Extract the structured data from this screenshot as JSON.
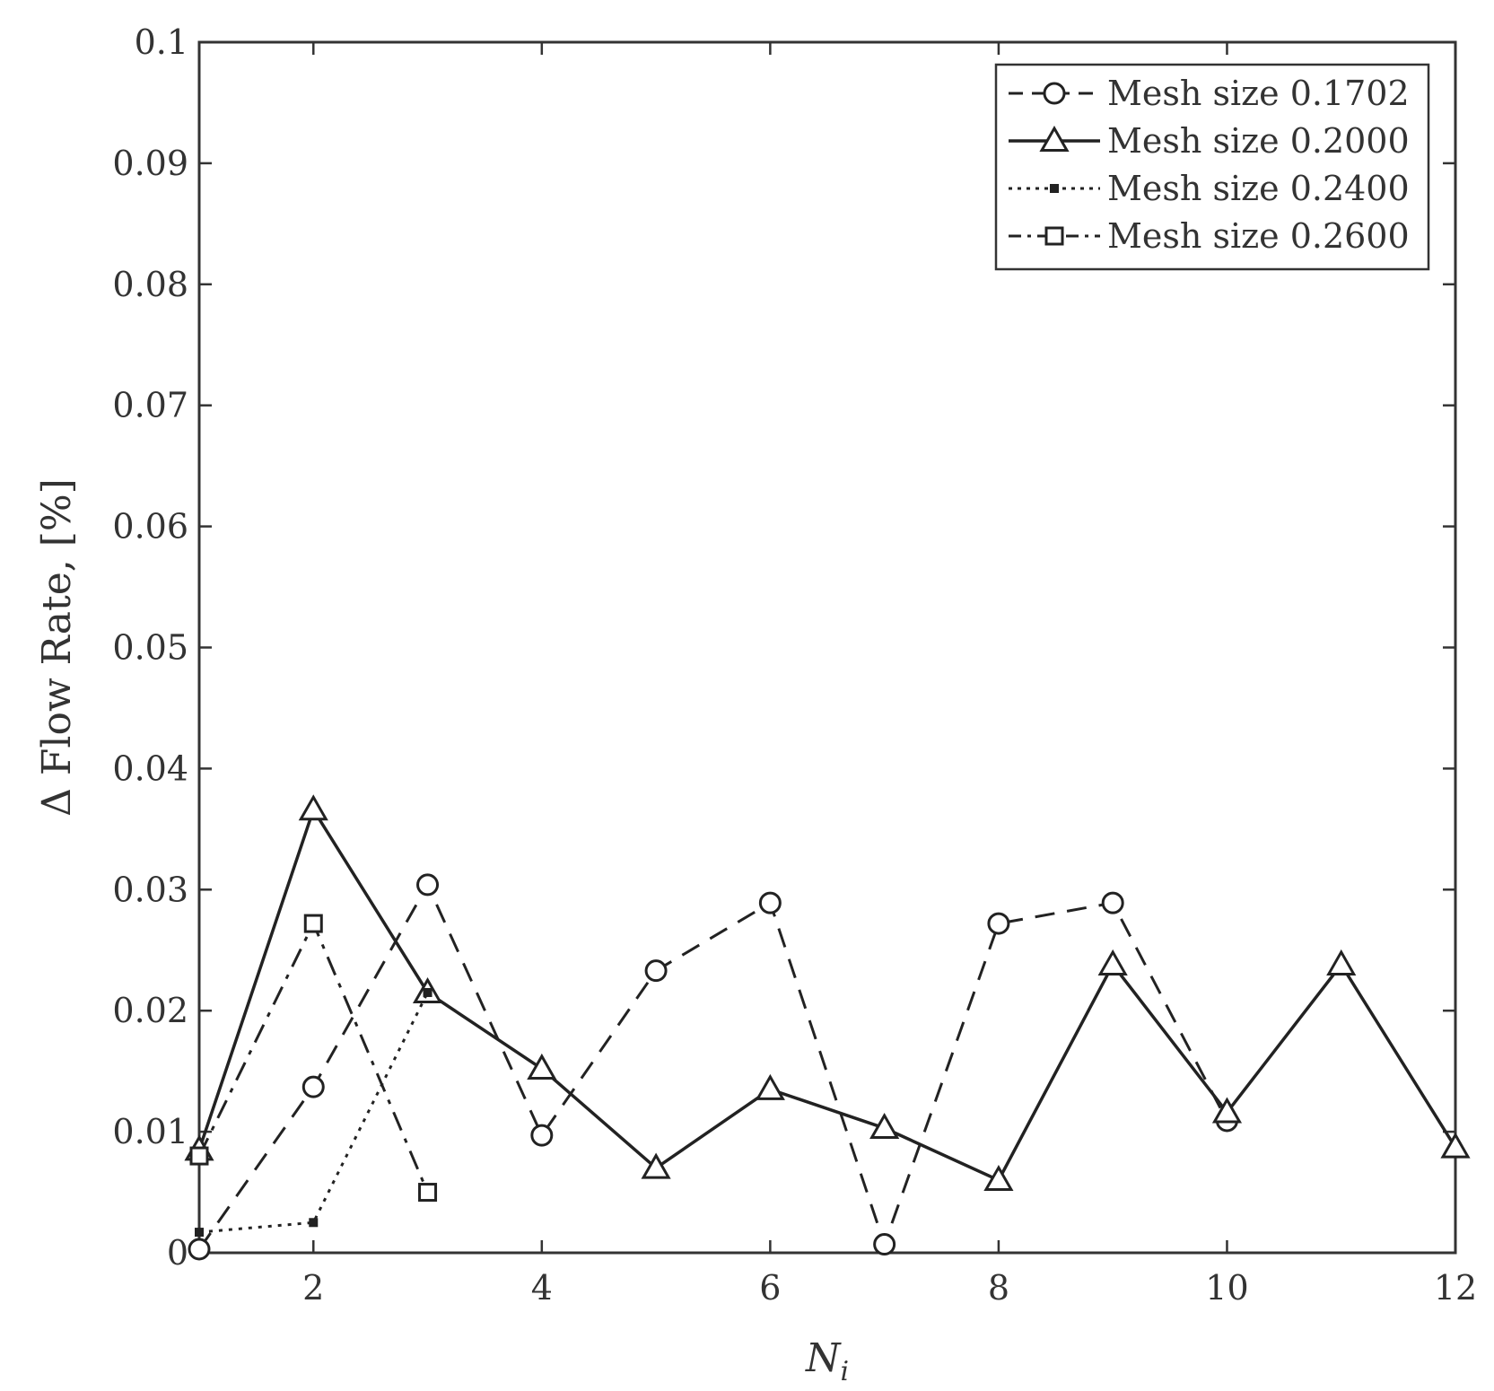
{
  "chart_data": {
    "type": "line",
    "xlabel": "N",
    "xlabel_sub": "i",
    "ylabel": "Δ Flow Rate, [%]",
    "xlim": [
      1,
      12
    ],
    "ylim": [
      0,
      0.1
    ],
    "xticks": [
      2,
      4,
      6,
      8,
      10,
      12
    ],
    "xtick_labels": [
      "2",
      "4",
      "6",
      "8",
      "10",
      "12"
    ],
    "yticks": [
      0,
      0.01,
      0.02,
      0.03,
      0.04,
      0.05,
      0.06,
      0.07,
      0.08,
      0.09,
      0.1
    ],
    "ytick_labels": [
      "0",
      "0.01",
      "0.02",
      "0.03",
      "0.04",
      "0.05",
      "0.06",
      "0.07",
      "0.08",
      "0.09",
      "0.1"
    ],
    "grid": false,
    "legend_position": "top-right",
    "series": [
      {
        "name": "Mesh size 0.1702",
        "line_style": "dashed",
        "marker": "circle",
        "color": "#222222",
        "x": [
          1,
          2,
          3,
          4,
          5,
          6,
          7,
          8,
          9,
          10
        ],
        "y": [
          0.0003,
          0.0137,
          0.0304,
          0.0097,
          0.0233,
          0.0289,
          0.0007,
          0.0272,
          0.0289,
          0.0109
        ]
      },
      {
        "name": "Mesh size 0.2000",
        "line_style": "solid",
        "marker": "triangle",
        "color": "#222222",
        "x": [
          1,
          2,
          3,
          4,
          5,
          6,
          7,
          8,
          9,
          10,
          11,
          12
        ],
        "y": [
          0.0085,
          0.0366,
          0.0215,
          0.0152,
          0.007,
          0.0135,
          0.0103,
          0.006,
          0.0238,
          0.0116,
          0.0238,
          0.0087
        ]
      },
      {
        "name": "Mesh size 0.2400",
        "line_style": "dotted",
        "marker": "small-square",
        "color": "#222222",
        "x": [
          1,
          2,
          3
        ],
        "y": [
          0.0017,
          0.0025,
          0.0215
        ]
      },
      {
        "name": "Mesh size 0.2600",
        "line_style": "dashdot",
        "marker": "square",
        "color": "#222222",
        "x": [
          1,
          2,
          3
        ],
        "y": [
          0.008,
          0.0272,
          0.005
        ]
      }
    ]
  }
}
